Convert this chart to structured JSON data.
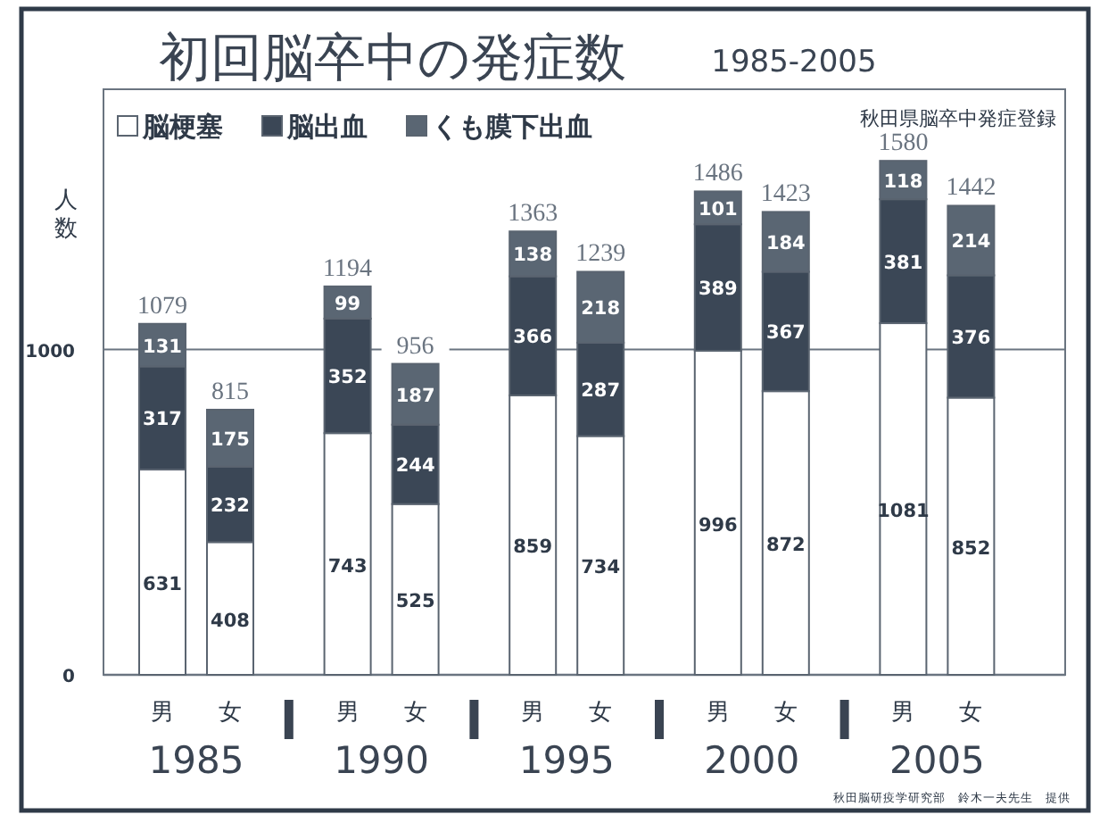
{
  "chart_data": {
    "type": "bar",
    "title": "初回脳卒中の発症数",
    "subtitle": "1985-2005",
    "ylabel": "人数",
    "categories": [
      "男",
      "女",
      "男",
      "女",
      "男",
      "女",
      "男",
      "女",
      "男",
      "女"
    ],
    "stacked": true,
    "series": [
      {
        "name": "脳梗塞",
        "color": "#ffffff",
        "values": [
          631,
          408,
          743,
          525,
          859,
          734,
          996,
          872,
          1081,
          852
        ]
      },
      {
        "name": "脳出血",
        "color": "#3b4756",
        "values": [
          317,
          232,
          352,
          244,
          366,
          287,
          389,
          367,
          381,
          376
        ]
      },
      {
        "name": "くも膜下出血",
        "color": "#5a6673",
        "values": [
          131,
          175,
          99,
          187,
          138,
          218,
          101,
          184,
          118,
          214
        ]
      }
    ],
    "totals": [
      "1079",
      "815",
      "1194",
      "956",
      "1363",
      "1239",
      "1486",
      "1423",
      "1580",
      "1442"
    ],
    "data_labels": true,
    "ylim": [
      0,
      1800
    ],
    "yticks": [
      0,
      1000
    ],
    "grid": "y",
    "legend": "top left",
    "annotations": [
      "秋田県脳卒中発症登録",
      "秋田脳研疫学研究部　鈴木一夫先生　提供",
      "1985",
      "1990",
      "1995",
      "2000",
      "2005"
    ]
  }
}
